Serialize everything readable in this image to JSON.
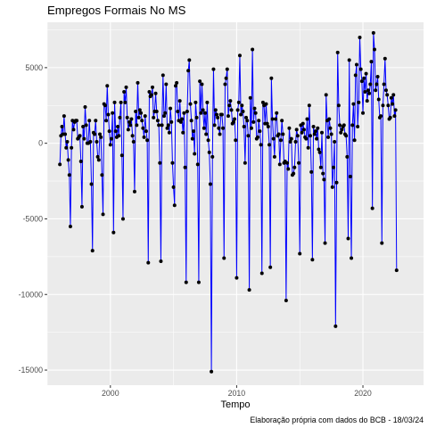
{
  "chart_data": {
    "type": "line",
    "title": "Empregos Formais No MS",
    "xlabel": "Tempo",
    "ylabel": "",
    "caption": "Elaboração própria com dados do BCB - 18/03/24",
    "x_start": "1996-01",
    "xlim": [
      1995.0,
      2024.8
    ],
    "ylim": [
      -16000,
      8000
    ],
    "x_ticks": [
      2000,
      2010,
      2020
    ],
    "y_ticks": [
      -15000,
      -10000,
      -5000,
      0,
      5000
    ],
    "grid": true,
    "line_color": "#0000ff",
    "point_color": "#000000",
    "panel_color": "#ebebeb",
    "series": [
      {
        "values": [
          -1400,
          500,
          1100,
          600,
          1800,
          600,
          -300,
          100,
          -1100,
          -2100,
          -5500,
          -300,
          1500,
          900,
          1400,
          1500,
          1500,
          300,
          400,
          500,
          -1200,
          -4200,
          1100,
          300,
          2400,
          1200,
          0,
          0,
          1500,
          100,
          -2700,
          -7100,
          700,
          600,
          1500,
          100,
          -900,
          -1100,
          600,
          400,
          -2100,
          -4700,
          2600,
          2500,
          1500,
          3800,
          1900,
          800,
          -100,
          300,
          2000,
          -5900,
          2700,
          800,
          400,
          1100,
          500,
          1700,
          2700,
          -800,
          -5000,
          3400,
          2700,
          3700,
          1700,
          900,
          1400,
          1200,
          1600,
          500,
          100,
          -3200,
          2100,
          1200,
          4000,
          1700,
          2200,
          2000,
          1500,
          1000,
          400,
          1800,
          800,
          200,
          -7900,
          3400,
          3100,
          3200,
          3700,
          1700,
          2100,
          3300,
          2100,
          1500,
          1200,
          -1300,
          -7800,
          1200,
          4500,
          1800,
          2000,
          3900,
          1000,
          1200,
          700,
          2300,
          1400,
          -1300,
          -2900,
          -4100,
          3800,
          4000,
          2100,
          1500,
          2800,
          1400,
          1600,
          700,
          2000,
          -1600,
          -9200,
          2100,
          4800,
          5500,
          2600,
          1500,
          300,
          800,
          -700,
          2700,
          1700,
          -1400,
          -9200,
          4100,
          2000,
          3900,
          2200,
          1000,
          2000,
          600,
          2700,
          200,
          -600,
          -2700,
          -15100,
          -900,
          4900,
          1200,
          2200,
          1900,
          1700,
          1000,
          600,
          1900,
          1900,
          1000,
          -7600,
          3900,
          4300,
          4900,
          1800,
          2500,
          2800,
          2200,
          1300,
          1400,
          1600,
          200,
          -8900,
          2200,
          2700,
          5800,
          1900,
          2500,
          2100,
          1100,
          -1300,
          1700,
          1500,
          500,
          -9700,
          3000,
          1000,
          6200,
          1400,
          2300,
          2000,
          300,
          400,
          1500,
          800,
          -100,
          -8600,
          2700,
          2500,
          1300,
          2600,
          1300,
          1100,
          -100,
          -8200,
          4300,
          1600,
          300,
          -900,
          1600,
          2000,
          500,
          600,
          -1400,
          200,
          1500,
          600,
          -1300,
          -1200,
          -10400,
          -1300,
          -1700,
          1000,
          100,
          300,
          -2100,
          -2000,
          -1600,
          100,
          900,
          500,
          -1300,
          -7300,
          1200,
          700,
          1300,
          900,
          400,
          300,
          1600,
          -300,
          2500,
          500,
          -1900,
          -7700,
          1100,
          600,
          800,
          300,
          1000,
          -400,
          -600,
          -1600,
          700,
          -2000,
          -2400,
          -6600,
          3200,
          1500,
          400,
          1600,
          1000,
          600,
          -2900,
          -1600,
          100,
          -12100,
          -2600,
          6000,
          2500,
          1200,
          700,
          900,
          1100,
          1200,
          600,
          500,
          -900,
          -6300,
          5500,
          -2200,
          -7600,
          1200,
          2600,
          200,
          4500,
          5200,
          1100,
          2700,
          7000,
          4900,
          4100,
          2000,
          4300,
          3400,
          4600,
          2800,
          3500,
          3300,
          3900,
          5400,
          -4300,
          7300,
          6200,
          3500,
          3900,
          4400,
          2900,
          1700,
          1800,
          -6600,
          2500,
          3900,
          5600,
          3500,
          3200,
          2500,
          1600,
          1700,
          3000,
          2600,
          3200,
          1800,
          2200,
          -8400
        ]
      }
    ]
  }
}
